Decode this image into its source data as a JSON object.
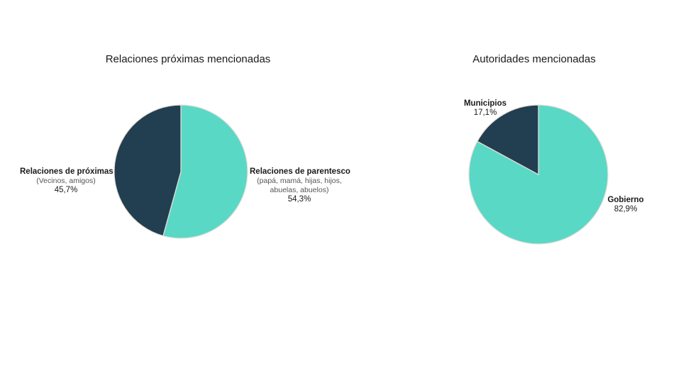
{
  "chart_data": [
    {
      "type": "pie",
      "title": "Relaciones próximas mencionadas",
      "slices": [
        {
          "label": "Relaciones de parentesco",
          "sublabel": "(papá, mamá, hijas, hijos, abuelas, abuelos)",
          "value": 54.3,
          "value_label": "54,3%",
          "color": "#5ad8c6"
        },
        {
          "label": "Relaciones de próximas",
          "sublabel": "(Vecinos, amigos)",
          "value": 45.7,
          "value_label": "45,7%",
          "color": "#223f51"
        }
      ]
    },
    {
      "type": "pie",
      "title": "Autoridades mencionadas",
      "slices": [
        {
          "label": "Gobierno",
          "value": 82.9,
          "value_label": "82,9%",
          "color": "#5ad8c6"
        },
        {
          "label": "Municipios",
          "value": 17.1,
          "value_label": "17,1%",
          "color": "#223f51"
        }
      ]
    }
  ]
}
